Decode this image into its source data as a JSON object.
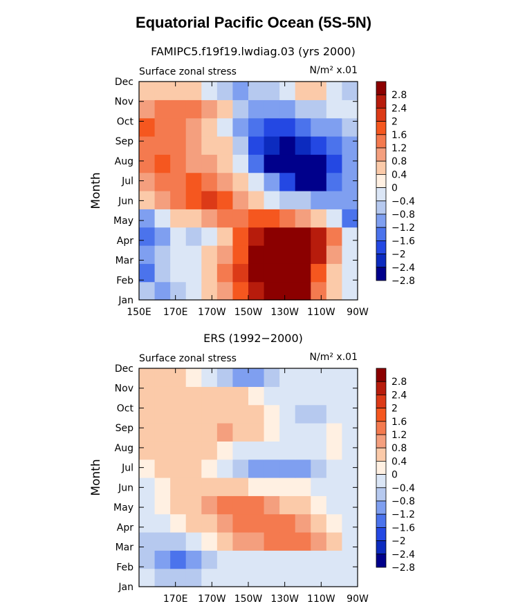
{
  "title": "Equatorial Pacific Ocean (5S-5N)",
  "colorbar": {
    "labels": [
      "2.8",
      "2.4",
      "2",
      "1.6",
      "1.2",
      "0.8",
      "0.4",
      "0",
      "−0.4",
      "−0.8",
      "−1.2",
      "−1.6",
      "−2",
      "−2.4",
      "−2.8"
    ],
    "colors": [
      "#8b0000",
      "#b71c0c",
      "#dc3a17",
      "#f5571f",
      "#f47a4f",
      "#f49f7e",
      "#fbcaa9",
      "#fff0e2",
      "#dbe6f6",
      "#b6c9ef",
      "#7f9ff0",
      "#4b73ec",
      "#2448e3",
      "#0c2bbf",
      "#00008b"
    ]
  },
  "chart_data": [
    {
      "type": "heatmap",
      "title": "FAMIPC5.f19f19.lwdiag.03 (yrs 2000)",
      "subtitle_left": "Surface zonal stress",
      "subtitle_right": "N/m² x.01",
      "ylabel": "Month",
      "xlabel": "",
      "x_ticks": [
        "150E",
        "170E",
        "170W",
        "150W",
        "130W",
        "110W",
        "90W"
      ],
      "y_ticks": [
        "Jan",
        "Feb",
        "Mar",
        "Apr",
        "May",
        "Jun",
        "Jul",
        "Aug",
        "Sep",
        "Oct",
        "Nov",
        "Dec"
      ],
      "x_range": [
        "150E",
        "90W"
      ],
      "grid": [
        [
          -0.8,
          -1.2,
          -0.8,
          -0.4,
          0.4,
          0.8,
          1.6,
          2.4,
          2.8,
          2.8,
          2.8,
          1.2,
          0.4,
          -0.4
        ],
        [
          -1.6,
          -0.8,
          -0.4,
          -0.4,
          0.4,
          1.2,
          2.0,
          2.8,
          2.8,
          2.8,
          2.8,
          1.6,
          0.4,
          -0.4
        ],
        [
          -1.2,
          -0.8,
          -0.4,
          -0.4,
          0.4,
          0.8,
          1.6,
          2.8,
          2.8,
          2.8,
          2.8,
          2.4,
          0.8,
          -0.4
        ],
        [
          -1.6,
          -1.2,
          -0.4,
          -0.8,
          -0.4,
          0.4,
          1.6,
          2.4,
          2.8,
          2.8,
          2.8,
          2.4,
          1.2,
          -0.4
        ],
        [
          -1.2,
          -0.4,
          0.4,
          0.4,
          0.8,
          1.2,
          1.2,
          1.6,
          1.6,
          1.2,
          0.8,
          0.4,
          -0.4,
          -1.6
        ],
        [
          0.4,
          0.8,
          1.2,
          1.6,
          2.0,
          1.6,
          0.8,
          0.4,
          -0.4,
          -0.8,
          -0.8,
          -1.2,
          -1.2,
          -1.2
        ],
        [
          0.8,
          1.2,
          1.2,
          1.6,
          1.2,
          0.8,
          0.4,
          -0.4,
          -1.2,
          -2.0,
          -2.8,
          -2.8,
          -1.6,
          -1.2
        ],
        [
          1.2,
          1.6,
          1.2,
          0.8,
          0.8,
          0.4,
          -0.4,
          -1.6,
          -2.8,
          -2.8,
          -2.8,
          -2.8,
          -2.0,
          -1.2
        ],
        [
          1.2,
          1.2,
          1.2,
          0.8,
          0.4,
          0.4,
          -0.8,
          -2.0,
          -2.4,
          -2.8,
          -2.4,
          -2.0,
          -1.6,
          -1.2
        ],
        [
          1.6,
          1.2,
          1.2,
          0.8,
          0.4,
          -0.4,
          -1.2,
          -1.6,
          -2.0,
          -2.0,
          -1.6,
          -1.2,
          -1.2,
          -0.8
        ],
        [
          0.8,
          1.2,
          1.2,
          1.2,
          0.8,
          0.4,
          -0.8,
          -1.2,
          -1.2,
          -1.2,
          -0.8,
          -0.8,
          -0.4,
          -0.4
        ],
        [
          0.4,
          0.4,
          0.4,
          0.4,
          -0.4,
          -0.8,
          -1.2,
          -0.8,
          -0.8,
          -0.4,
          0.4,
          0.4,
          -0.4,
          -0.8
        ]
      ]
    },
    {
      "type": "heatmap",
      "title": "ERS (1992−2000)",
      "subtitle_left": "Surface zonal stress",
      "subtitle_right": "N/m² x.01",
      "ylabel": "Month",
      "xlabel": "",
      "x_ticks": [
        "",
        "170E",
        "170W",
        "150W",
        "130W",
        "110W",
        "90W"
      ],
      "y_ticks": [
        "Jan",
        "Feb",
        "Mar",
        "Apr",
        "May",
        "Jun",
        "Jul",
        "Aug",
        "Sep",
        "Oct",
        "Nov",
        "Dec"
      ],
      "x_range": [
        "150E",
        "90W"
      ],
      "grid": [
        [
          -0.4,
          -0.8,
          -0.8,
          -0.8,
          -0.4,
          -0.4,
          -0.4,
          -0.4,
          -0.4,
          -0.4,
          -0.4,
          -0.4,
          -0.4,
          -0.4
        ],
        [
          -0.8,
          -1.2,
          -1.6,
          -1.2,
          -0.8,
          -0.4,
          -0.4,
          -0.4,
          -0.4,
          -0.4,
          -0.4,
          -0.4,
          -0.4,
          -0.4
        ],
        [
          -0.8,
          -0.8,
          -0.8,
          -0.4,
          0.0,
          0.4,
          0.8,
          0.8,
          1.2,
          1.2,
          1.2,
          0.8,
          0.4,
          -0.4
        ],
        [
          -0.4,
          -0.4,
          0.0,
          0.4,
          0.4,
          0.8,
          1.2,
          1.2,
          1.2,
          1.2,
          0.8,
          0.4,
          0.0,
          -0.4
        ],
        [
          -0.4,
          0.0,
          0.4,
          0.4,
          0.8,
          1.2,
          1.2,
          1.2,
          0.8,
          0.4,
          0.4,
          0.0,
          -0.4,
          -0.4
        ],
        [
          -0.4,
          0.0,
          0.4,
          0.4,
          0.4,
          0.4,
          0.4,
          0.0,
          0.0,
          0.0,
          0.0,
          -0.4,
          -0.4,
          -0.4
        ],
        [
          0.0,
          0.4,
          0.4,
          0.4,
          0.0,
          -0.4,
          -0.8,
          -1.2,
          -1.2,
          -1.2,
          -1.2,
          -0.8,
          -0.4,
          -0.4
        ],
        [
          0.4,
          0.4,
          0.4,
          0.4,
          0.4,
          0.0,
          -0.4,
          -0.4,
          -0.4,
          -0.4,
          -0.4,
          -0.4,
          0.0,
          -0.4
        ],
        [
          0.4,
          0.4,
          0.4,
          0.4,
          0.4,
          0.8,
          0.4,
          0.4,
          0.0,
          -0.4,
          -0.4,
          -0.4,
          0.0,
          -0.4
        ],
        [
          0.4,
          0.4,
          0.4,
          0.4,
          0.4,
          0.4,
          0.4,
          0.4,
          0.0,
          -0.4,
          -0.8,
          -0.8,
          -0.4,
          -0.4
        ],
        [
          0.4,
          0.4,
          0.4,
          0.4,
          0.4,
          0.4,
          0.4,
          0.0,
          -0.4,
          -0.4,
          -0.4,
          -0.4,
          -0.4,
          -0.4
        ],
        [
          0.4,
          0.4,
          0.4,
          0.0,
          -0.4,
          -0.8,
          -1.2,
          -1.2,
          -0.8,
          -0.4,
          -0.4,
          -0.4,
          -0.4,
          -0.4
        ]
      ]
    }
  ]
}
